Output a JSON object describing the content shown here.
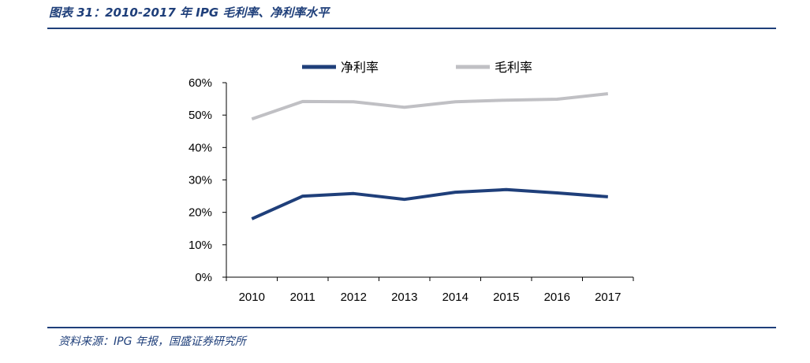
{
  "figure": {
    "title": "图表 31：2010-2017 年 IPG 毛利率、净利率水平",
    "source": "资料来源：IPG 年报，国盛证券研究所"
  },
  "chart_data": {
    "type": "line",
    "x": [
      "2010",
      "2011",
      "2012",
      "2013",
      "2014",
      "2015",
      "2016",
      "2017"
    ],
    "series": [
      {
        "name": "净利率",
        "color": "#1f3f7a",
        "values": [
          18.0,
          25.0,
          25.8,
          24.0,
          26.2,
          27.0,
          26.0,
          24.8
        ]
      },
      {
        "name": "毛利率",
        "color": "#c0c0c4",
        "values": [
          48.8,
          54.2,
          54.1,
          52.4,
          54.1,
          54.6,
          54.9,
          56.6
        ]
      }
    ],
    "ylim": [
      0,
      60
    ],
    "yticks": [
      "0%",
      "10%",
      "20%",
      "30%",
      "40%",
      "50%",
      "60%"
    ],
    "legend": "top",
    "grid": false
  }
}
